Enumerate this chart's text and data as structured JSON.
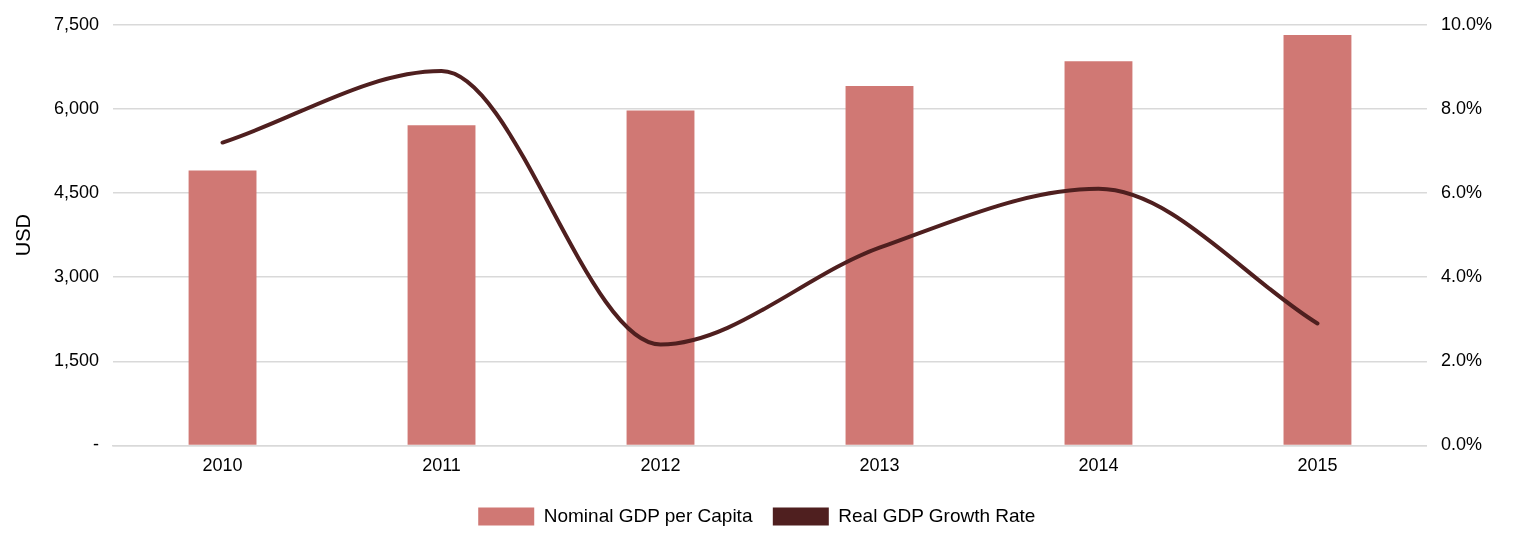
{
  "chart_data": {
    "type": "bar",
    "ylabel": "USD",
    "categories": [
      "2010",
      "2011",
      "2012",
      "2013",
      "2014",
      "2015"
    ],
    "series": [
      {
        "name": "Nominal GDP per Capita",
        "color": "#d07874",
        "values": [
          4900,
          5710,
          5970,
          6410,
          6850,
          7320
        ]
      },
      {
        "name": "Real GDP Growth Rate",
        "type": "line",
        "axis": "y2",
        "color": "#4f1f1f",
        "values": [
          7.2,
          8.9,
          2.4,
          4.7,
          6.1,
          2.9
        ]
      }
    ],
    "ylim": [
      0,
      7500
    ],
    "yticks": [
      {
        "value": 0,
        "label": "-"
      },
      {
        "value": 1500,
        "label": "1,500"
      },
      {
        "value": 3000,
        "label": "3,000"
      },
      {
        "value": 4500,
        "label": "4,500"
      },
      {
        "value": 6000,
        "label": "6,000"
      },
      {
        "value": 7500,
        "label": "7,500"
      }
    ],
    "y2lim": [
      0,
      10
    ],
    "y2ticks": [
      {
        "value": 0,
        "label": "0.0%"
      },
      {
        "value": 2,
        "label": "2.0%"
      },
      {
        "value": 4,
        "label": "4.0%"
      },
      {
        "value": 6,
        "label": "6.0%"
      },
      {
        "value": 8,
        "label": "8.0%"
      },
      {
        "value": 10,
        "label": "10.0%"
      }
    ],
    "grid": "y",
    "legend": "bottom",
    "marker": "none",
    "line_style": "solid"
  }
}
